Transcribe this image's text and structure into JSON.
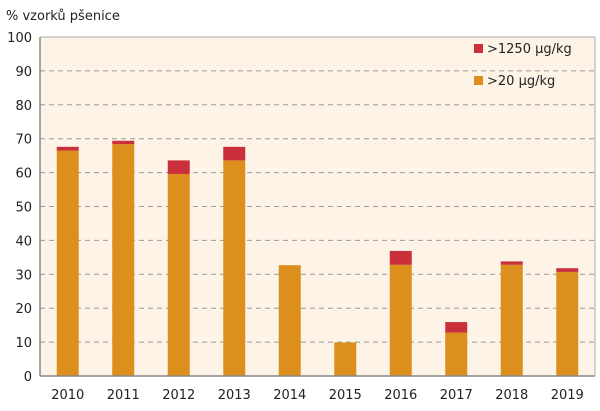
{
  "chart_data": {
    "type": "bar",
    "stacked": true,
    "ylabel": "% vzorků pšenice",
    "ylim": [
      0,
      100
    ],
    "yticks": [
      0,
      10,
      20,
      30,
      40,
      50,
      60,
      70,
      80,
      90,
      100
    ],
    "grid": true,
    "legend_position": "top-right",
    "categories": [
      "2010",
      "2011",
      "2012",
      "2013",
      "2014",
      "2015",
      "2016",
      "2017",
      "2018",
      "2019"
    ],
    "series": [
      {
        "name": ">20 µg/kg",
        "color": "#dc8f1c",
        "values": [
          66.5,
          68.4,
          59.6,
          63.6,
          32.7,
          9.9,
          32.8,
          12.8,
          32.8,
          30.7
        ]
      },
      {
        "name": ">1250 µg/kg",
        "color": "#c9303a",
        "values": [
          1.1,
          1.0,
          4.0,
          4.0,
          0,
          0,
          4.1,
          3.1,
          1.0,
          1.1
        ]
      }
    ],
    "colors": {
      "plot_bg": "#fdf3e7",
      "grid": "#9a9a9a"
    }
  }
}
